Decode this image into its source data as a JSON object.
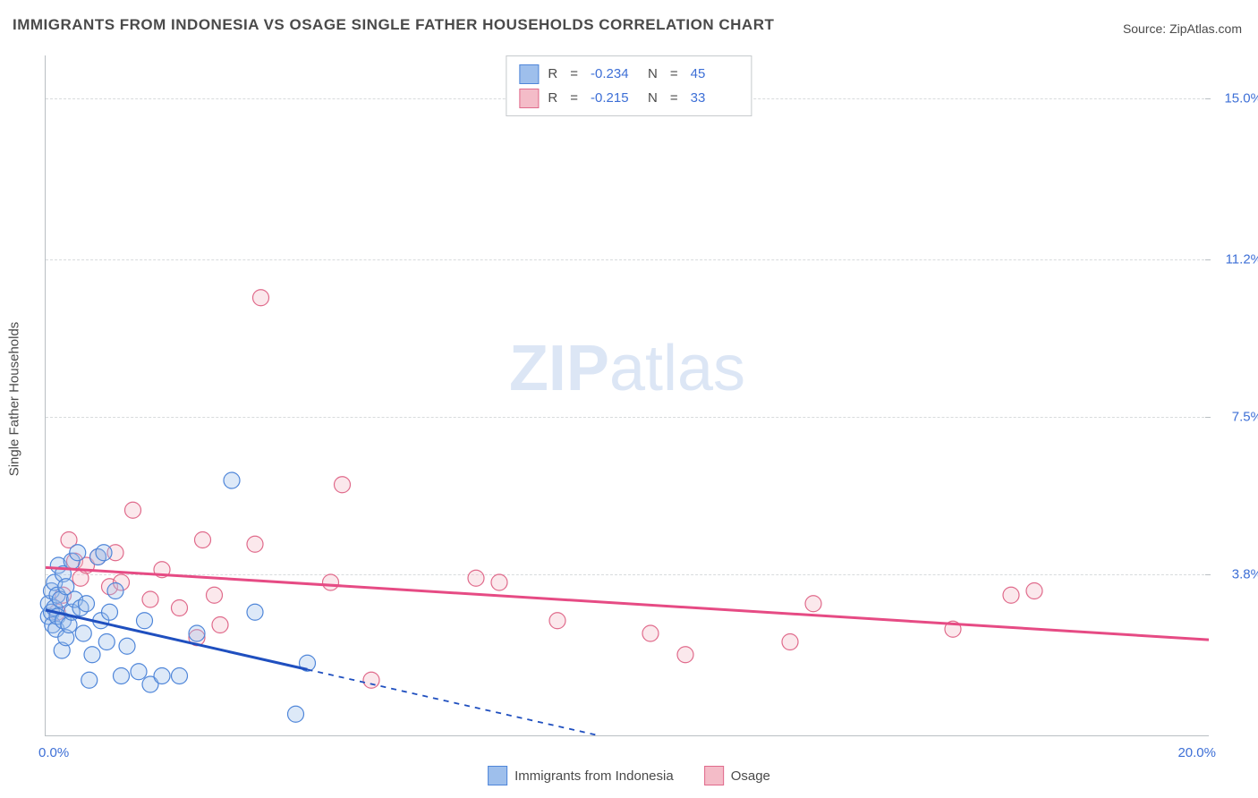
{
  "title": "IMMIGRANTS FROM INDONESIA VS OSAGE SINGLE FATHER HOUSEHOLDS CORRELATION CHART",
  "source_label": "Source: ZipAtlas.com",
  "watermark": {
    "bold": "ZIP",
    "light": "atlas"
  },
  "y_axis_title": "Single Father Households",
  "colors": {
    "series_a_fill": "#9ebfec",
    "series_a_stroke": "#4f86d9",
    "series_b_fill": "#f4bcc8",
    "series_b_stroke": "#e06a8b",
    "trend_a": "#1f4fbf",
    "trend_b": "#e64b84",
    "tick_label": "#3d6fd6",
    "grid": "#d8dbdd",
    "axis": "#b9bfc3",
    "text": "#4a4a4a",
    "background": "#ffffff"
  },
  "chart": {
    "type": "scatter",
    "xlim": [
      0,
      20
    ],
    "ylim": [
      0,
      16
    ],
    "x_ticks": [
      {
        "v": 0,
        "label": "0.0%",
        "align": "left"
      },
      {
        "v": 20,
        "label": "20.0%",
        "align": "right"
      }
    ],
    "y_ticks": [
      {
        "v": 3.8,
        "label": "3.8%"
      },
      {
        "v": 7.5,
        "label": "7.5%"
      },
      {
        "v": 11.2,
        "label": "11.2%"
      },
      {
        "v": 15.0,
        "label": "15.0%"
      }
    ],
    "marker_radius": 9,
    "line_width_solid": 3,
    "line_width_dash": 1.8,
    "dash_pattern": "6,6"
  },
  "legend_top": {
    "rows": [
      {
        "swatch_fill": "#9ebfec",
        "swatch_stroke": "#4f86d9",
        "r_label": "R",
        "r_value": "-0.234",
        "n_label": "N",
        "n_value": "45"
      },
      {
        "swatch_fill": "#f4bcc8",
        "swatch_stroke": "#e06a8b",
        "r_label": "R",
        "r_value": "-0.215",
        "n_label": "N",
        "n_value": "33"
      }
    ]
  },
  "legend_bottom": {
    "items": [
      {
        "swatch_fill": "#9ebfec",
        "swatch_stroke": "#4f86d9",
        "label": "Immigrants from Indonesia"
      },
      {
        "swatch_fill": "#f4bcc8",
        "swatch_stroke": "#e06a8b",
        "label": "Osage"
      }
    ]
  },
  "series_a": {
    "name": "Immigrants from Indonesia",
    "points": [
      [
        0.05,
        2.8
      ],
      [
        0.05,
        3.1
      ],
      [
        0.1,
        2.9
      ],
      [
        0.1,
        3.4
      ],
      [
        0.12,
        2.6
      ],
      [
        0.15,
        3.6
      ],
      [
        0.15,
        3.0
      ],
      [
        0.18,
        2.5
      ],
      [
        0.2,
        3.3
      ],
      [
        0.2,
        2.8
      ],
      [
        0.22,
        4.0
      ],
      [
        0.25,
        3.2
      ],
      [
        0.28,
        2.0
      ],
      [
        0.3,
        2.7
      ],
      [
        0.3,
        3.8
      ],
      [
        0.35,
        3.5
      ],
      [
        0.35,
        2.3
      ],
      [
        0.4,
        2.6
      ],
      [
        0.45,
        4.1
      ],
      [
        0.45,
        2.9
      ],
      [
        0.5,
        3.2
      ],
      [
        0.55,
        4.3
      ],
      [
        0.6,
        3.0
      ],
      [
        0.65,
        2.4
      ],
      [
        0.7,
        3.1
      ],
      [
        0.75,
        1.3
      ],
      [
        0.8,
        1.9
      ],
      [
        0.9,
        4.2
      ],
      [
        0.95,
        2.7
      ],
      [
        1.0,
        4.3
      ],
      [
        1.05,
        2.2
      ],
      [
        1.1,
        2.9
      ],
      [
        1.2,
        3.4
      ],
      [
        1.3,
        1.4
      ],
      [
        1.4,
        2.1
      ],
      [
        1.6,
        1.5
      ],
      [
        1.7,
        2.7
      ],
      [
        1.8,
        1.2
      ],
      [
        2.0,
        1.4
      ],
      [
        2.3,
        1.4
      ],
      [
        2.6,
        2.4
      ],
      [
        3.2,
        6.0
      ],
      [
        3.6,
        2.9
      ],
      [
        4.3,
        0.5
      ],
      [
        4.5,
        1.7
      ]
    ],
    "trend_line_solid": {
      "x1": 0,
      "y1": 2.95,
      "x2": 4.5,
      "y2": 1.55
    },
    "trend_line_dash": {
      "x1": 4.5,
      "y1": 1.55,
      "x2": 9.5,
      "y2": 0.0
    }
  },
  "series_b": {
    "name": "Osage",
    "points": [
      [
        0.2,
        2.9
      ],
      [
        0.3,
        3.3
      ],
      [
        0.4,
        4.6
      ],
      [
        0.5,
        4.1
      ],
      [
        0.6,
        3.7
      ],
      [
        0.7,
        4.0
      ],
      [
        0.9,
        4.2
      ],
      [
        1.1,
        3.5
      ],
      [
        1.2,
        4.3
      ],
      [
        1.3,
        3.6
      ],
      [
        1.5,
        5.3
      ],
      [
        1.8,
        3.2
      ],
      [
        2.0,
        3.9
      ],
      [
        2.3,
        3.0
      ],
      [
        2.6,
        2.3
      ],
      [
        2.7,
        4.6
      ],
      [
        2.9,
        3.3
      ],
      [
        3.0,
        2.6
      ],
      [
        3.6,
        4.5
      ],
      [
        3.7,
        10.3
      ],
      [
        4.9,
        3.6
      ],
      [
        5.1,
        5.9
      ],
      [
        5.6,
        1.3
      ],
      [
        7.4,
        3.7
      ],
      [
        7.8,
        3.6
      ],
      [
        8.8,
        2.7
      ],
      [
        10.4,
        2.4
      ],
      [
        11.0,
        1.9
      ],
      [
        12.8,
        2.2
      ],
      [
        15.6,
        2.5
      ],
      [
        16.6,
        3.3
      ],
      [
        17.0,
        3.4
      ],
      [
        13.2,
        3.1
      ]
    ],
    "trend_line": {
      "x1": 0,
      "y1": 3.95,
      "x2": 20,
      "y2": 2.25
    }
  }
}
